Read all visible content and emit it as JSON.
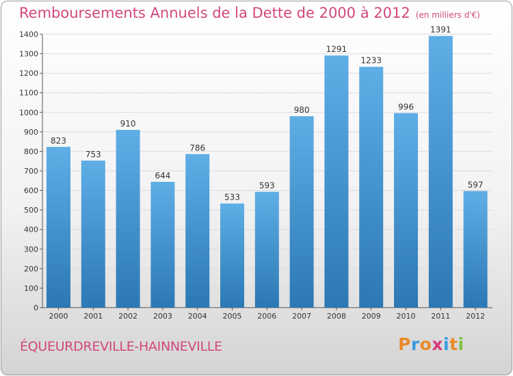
{
  "header": {
    "title": "Remboursements Annuels de la Dette de 2000 à 2012",
    "subtitle": "(en milliers d'€)"
  },
  "footer": {
    "commune": "ÉQUEURDREVILLE-HAINNEVILLE",
    "logo": "Proxiti"
  },
  "colors": {
    "title": "#d1477c",
    "bar_top": "#5faee6",
    "bar_bottom": "#2b78b4",
    "logo_letters": [
      "#e98b2a",
      "#3b9be0",
      "#e98b2a",
      "#d43b7d",
      "#3b9be0",
      "#e98b2a",
      "#7dc242"
    ]
  },
  "chart_data": {
    "type": "bar",
    "categories": [
      "2000",
      "2001",
      "2002",
      "2003",
      "2004",
      "2005",
      "2006",
      "2007",
      "2008",
      "2009",
      "2010",
      "2011",
      "2012"
    ],
    "values": [
      823,
      753,
      910,
      644,
      786,
      533,
      593,
      980,
      1291,
      1233,
      996,
      1391,
      597
    ],
    "ylim": [
      0,
      1400
    ],
    "yticks": [
      0,
      100,
      200,
      300,
      400,
      500,
      600,
      700,
      800,
      900,
      1000,
      1100,
      1200,
      1300,
      1400
    ],
    "grid": true,
    "data_labels": true
  }
}
